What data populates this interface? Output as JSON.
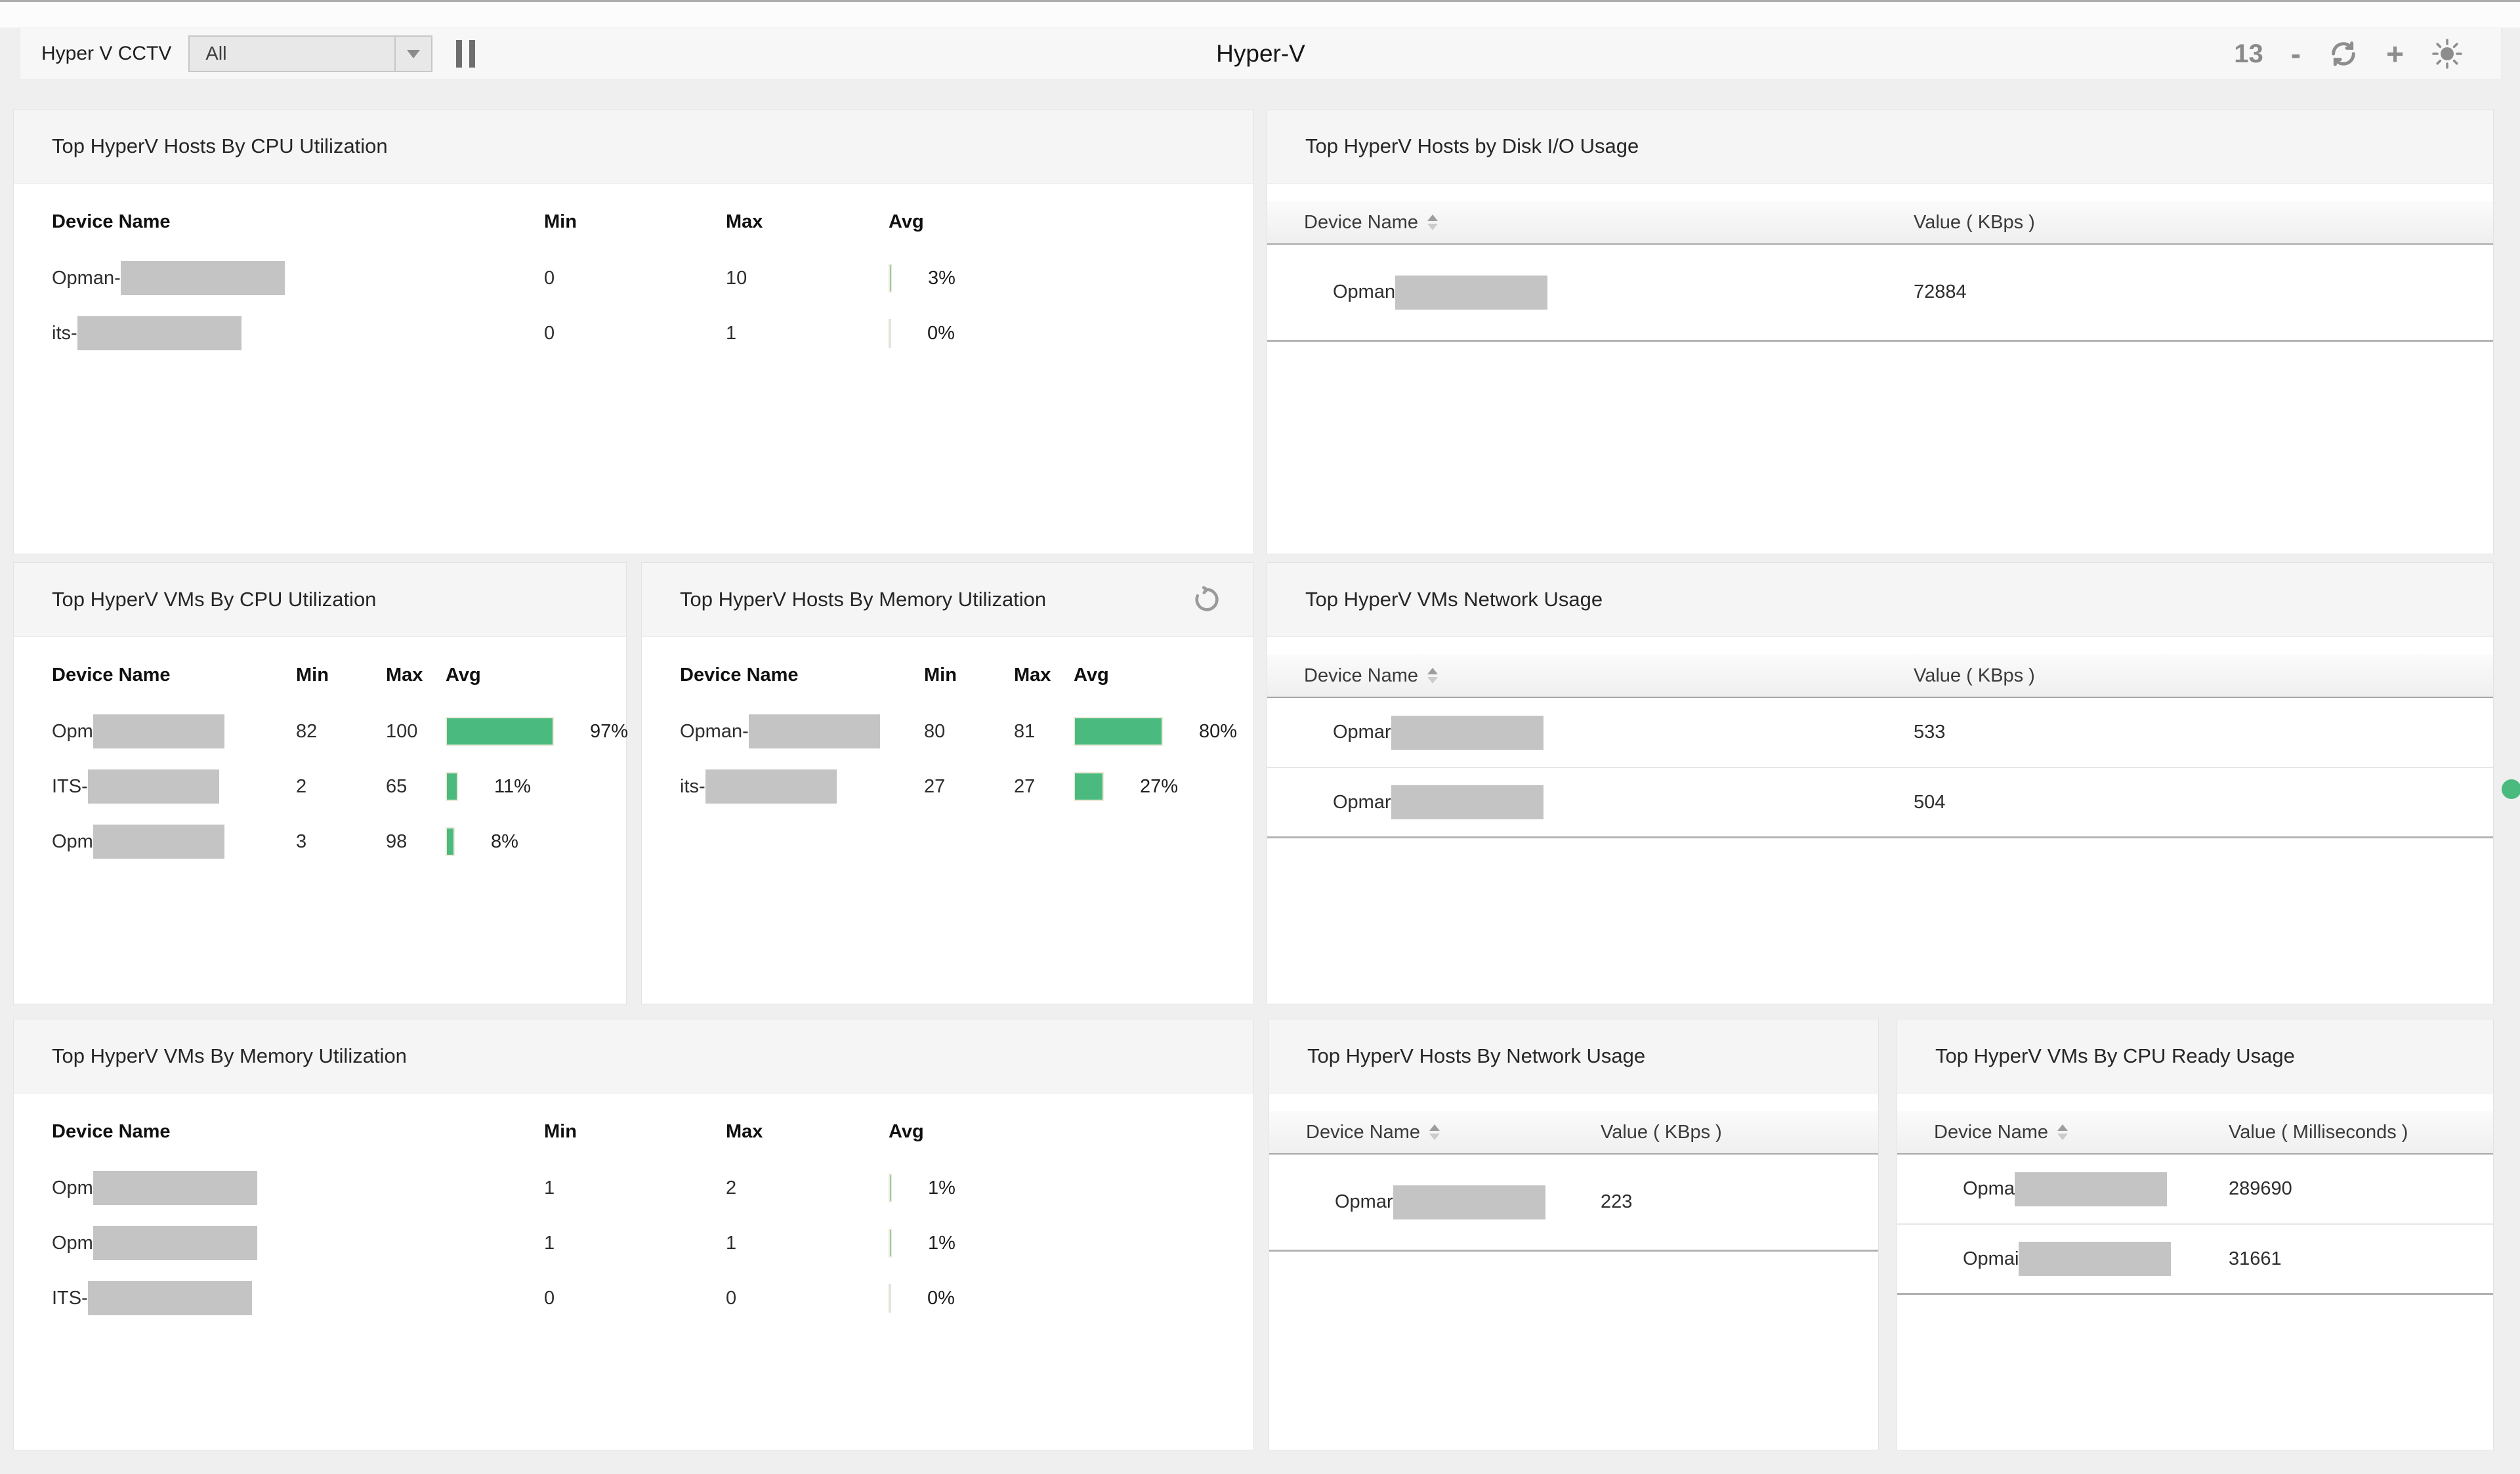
{
  "header": {
    "dashboard_label": "Hyper V CCTV",
    "filter_value": "All",
    "title": "Hyper-V",
    "widget_count": "13",
    "zoom_out_label": "-",
    "zoom_in_label": "+"
  },
  "icons": {
    "pause": "pause-icon",
    "dropdown_arrow": "▾",
    "refresh": "⟳",
    "brightness": "☀",
    "reload": "⟲",
    "sort": "▲▼"
  },
  "colors": {
    "accent_green": "#4aba7f",
    "redaction_gray": "#c4c4c4",
    "panel_header_bg": "#f5f5f5"
  },
  "panels": [
    {
      "title": "Top HyperV Hosts By CPU Utilization",
      "columns": {
        "name": "Device Name",
        "min": "Min",
        "max": "Max",
        "avg": "Avg"
      },
      "rows": [
        {
          "prefix": "Opman-",
          "min": "0",
          "max": "10",
          "avg_pct": 3,
          "avg_label": "3%"
        },
        {
          "prefix": "its-",
          "min": "0",
          "max": "1",
          "avg_pct": 0,
          "avg_label": "0%"
        }
      ]
    },
    {
      "title": "Top HyperV Hosts by Disk I/O Usage",
      "columns": {
        "name": "Device Name",
        "value": "Value ( KBps )"
      },
      "rows": [
        {
          "prefix": "Opman",
          "value": "72884"
        }
      ]
    },
    {
      "title": "Top HyperV VMs By CPU Utilization",
      "columns": {
        "name": "Device Name",
        "min": "Min",
        "max": "Max",
        "avg": "Avg"
      },
      "rows": [
        {
          "prefix": "Opm",
          "min": "82",
          "max": "100",
          "avg_pct": 97,
          "avg_label": "97%"
        },
        {
          "prefix": "ITS-",
          "min": "2",
          "max": "65",
          "avg_pct": 11,
          "avg_label": "11%"
        },
        {
          "prefix": "Opm",
          "min": "3",
          "max": "98",
          "avg_pct": 8,
          "avg_label": "8%"
        }
      ]
    },
    {
      "title": "Top HyperV Hosts By Memory Utilization",
      "columns": {
        "name": "Device Name",
        "min": "Min",
        "max": "Max",
        "avg": "Avg"
      },
      "rows": [
        {
          "prefix": "Opman-",
          "min": "80",
          "max": "81",
          "avg_pct": 80,
          "avg_label": "80%"
        },
        {
          "prefix": "its-",
          "min": "27",
          "max": "27",
          "avg_pct": 27,
          "avg_label": "27%"
        }
      ]
    },
    {
      "title": "Top HyperV VMs Network Usage",
      "columns": {
        "name": "Device Name",
        "value": "Value ( KBps )"
      },
      "rows": [
        {
          "prefix": "Opmar",
          "value": "533"
        },
        {
          "prefix": "Opmar",
          "value": "504"
        }
      ]
    },
    {
      "title": "Top HyperV VMs By Memory Utilization",
      "columns": {
        "name": "Device Name",
        "min": "Min",
        "max": "Max",
        "avg": "Avg"
      },
      "rows": [
        {
          "prefix": "Opm",
          "min": "1",
          "max": "2",
          "avg_pct": 1,
          "avg_label": "1%"
        },
        {
          "prefix": "Opm",
          "min": "1",
          "max": "1",
          "avg_pct": 1,
          "avg_label": "1%"
        },
        {
          "prefix": "ITS-",
          "min": "0",
          "max": "0",
          "avg_pct": 0,
          "avg_label": "0%"
        }
      ]
    },
    {
      "title": "Top HyperV Hosts By Network Usage",
      "columns": {
        "name": "Device Name",
        "value": "Value ( KBps )"
      },
      "rows": [
        {
          "prefix": "Opmar",
          "value": "223"
        }
      ]
    },
    {
      "title": "Top HyperV VMs By CPU Ready Usage",
      "columns": {
        "name": "Device Name",
        "value": "Value ( Milliseconds )"
      },
      "rows": [
        {
          "prefix": "Opma",
          "value": "289690"
        },
        {
          "prefix": "Opmai",
          "value": "31661"
        }
      ]
    }
  ]
}
